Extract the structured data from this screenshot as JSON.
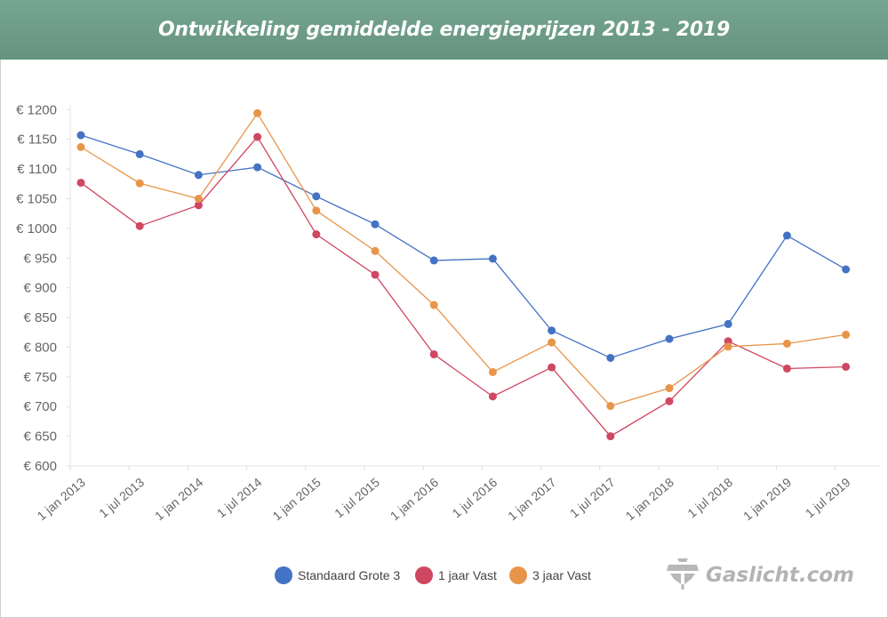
{
  "chart_data": {
    "type": "line",
    "title": "Ontwikkeling gemiddelde energieprijzen 2013 - 2019",
    "xlabel": "",
    "ylabel": "",
    "categories": [
      "1 jan 2013",
      "1 jul 2013",
      "1 jan 2014",
      "1 jul 2014",
      "1 jan 2015",
      "1 jul 2015",
      "1 jan 2016",
      "1 jul 2016",
      "1 jan 2017",
      "1 jul 2017",
      "1 jan 2018",
      "1 jul 2018",
      "1 jan 2019",
      "1 jul 2019"
    ],
    "yticks": [
      "€ 600",
      "€ 650",
      "€ 700",
      "€ 750",
      "€ 800",
      "€ 850",
      "€ 900",
      "€ 950",
      "€ 1000",
      "€ 1050",
      "€ 1100",
      "€ 1150",
      "€ 1200"
    ],
    "ylim": [
      600,
      1200
    ],
    "grid": false,
    "legend_position": "bottom",
    "series": [
      {
        "name": "Standaard Grote 3",
        "color": "#4472c4",
        "values": [
          1157,
          1125,
          1090,
          1103,
          1054,
          1007,
          946,
          949,
          828,
          782,
          814,
          839,
          988,
          931
        ]
      },
      {
        "name": "1 jaar Vast",
        "color": "#cf4760",
        "values": [
          1077,
          1004,
          1039,
          1154,
          990,
          922,
          788,
          717,
          766,
          650,
          709,
          810,
          764,
          767
        ]
      },
      {
        "name": "3 jaar Vast",
        "color": "#e8954a",
        "values": [
          1137,
          1076,
          1050,
          1194,
          1030,
          962,
          871,
          758,
          808,
          701,
          731,
          801,
          806,
          821
        ]
      }
    ]
  },
  "logo": {
    "text": "Gaslicht.com"
  },
  "colors": {
    "title_bar": "#6e9c89",
    "logo": "#b3b3b3"
  }
}
